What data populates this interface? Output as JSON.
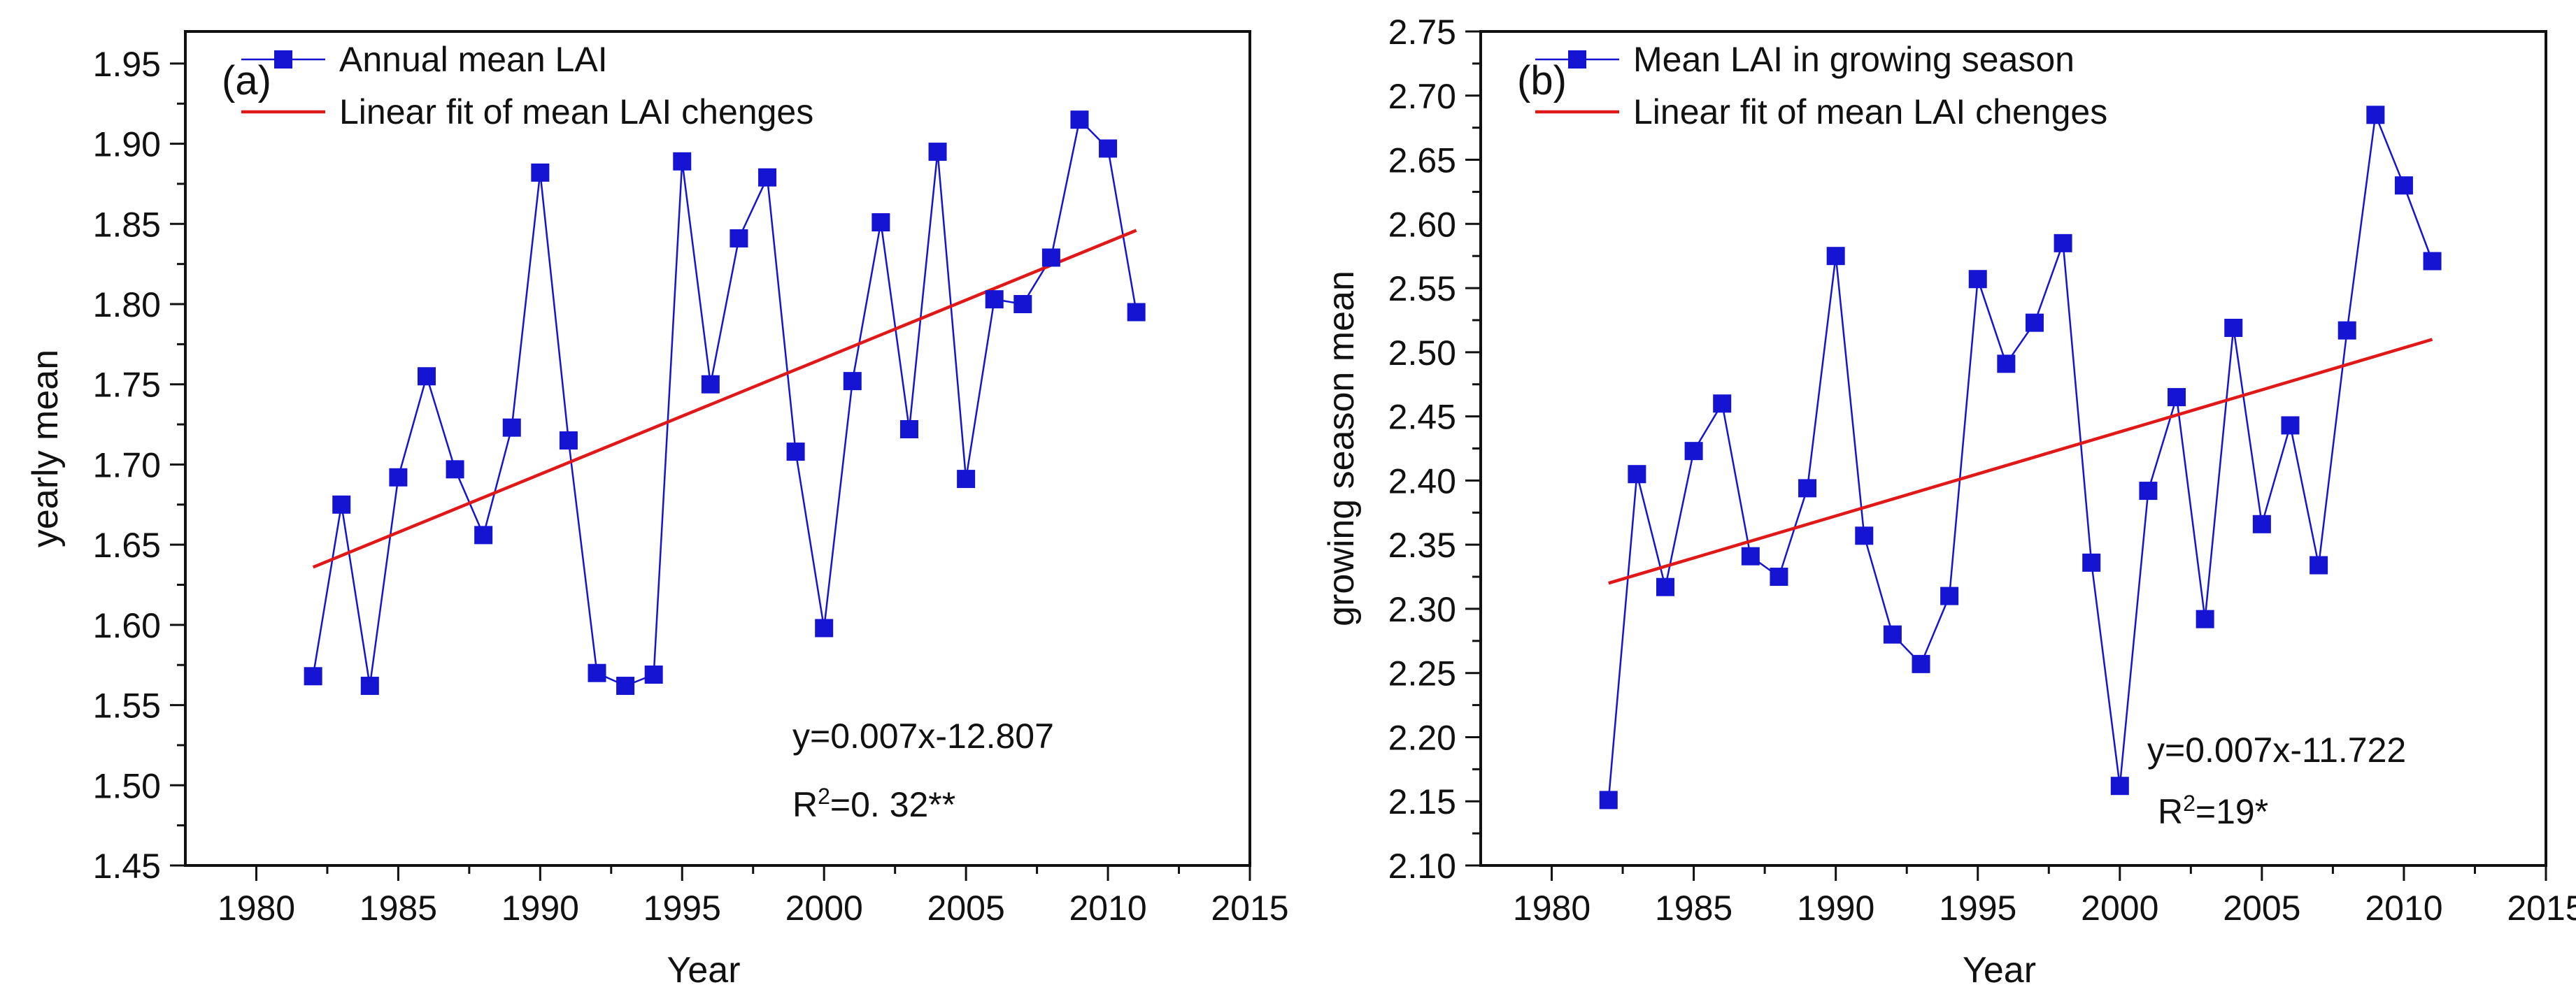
{
  "colors": {
    "series": "#1414d2",
    "fit": "#e01818",
    "axis": "#111111"
  },
  "chart_data": [
    {
      "type": "line",
      "panel_label": "(a)",
      "xlabel": "Year",
      "ylabel": "yearly mean",
      "xlim": [
        1977.5,
        2015
      ],
      "ylim": [
        1.45,
        1.97
      ],
      "xticks": [
        1980,
        1985,
        1990,
        1995,
        2000,
        2005,
        2010,
        2015
      ],
      "xtick_labels": [
        "1980",
        "1985",
        "1990",
        "1995",
        "2000",
        "2005",
        "2010",
        "2015"
      ],
      "yticks": [
        1.45,
        1.5,
        1.55,
        1.6,
        1.65,
        1.7,
        1.75,
        1.8,
        1.85,
        1.9,
        1.95
      ],
      "ytick_labels": [
        "1.45",
        "1.50",
        "1.55",
        "1.60",
        "1.65",
        "1.70",
        "1.75",
        "1.80",
        "1.85",
        "1.90",
        "1.95"
      ],
      "series": [
        {
          "name": "Annual mean LAI",
          "marker": "square",
          "x": [
            1982,
            1983,
            1984,
            1985,
            1986,
            1987,
            1988,
            1989,
            1990,
            1991,
            1992,
            1993,
            1994,
            1995,
            1996,
            1997,
            1998,
            1999,
            2000,
            2001,
            2002,
            2003,
            2004,
            2005,
            2006,
            2007,
            2008,
            2009,
            2010,
            2011
          ],
          "values": [
            1.568,
            1.675,
            1.562,
            1.692,
            1.755,
            1.697,
            1.656,
            1.723,
            1.882,
            1.715,
            1.57,
            1.562,
            1.569,
            1.889,
            1.75,
            1.841,
            1.879,
            1.708,
            1.598,
            1.752,
            1.851,
            1.722,
            1.895,
            1.691,
            1.803,
            1.8,
            1.829,
            1.915,
            1.897,
            1.795
          ]
        },
        {
          "name": "Linear fit of mean LAI chenges",
          "x": [
            1982,
            2011
          ],
          "values": [
            1.636,
            1.846
          ]
        }
      ],
      "annotations": {
        "equation": "y=0.007x-12.807",
        "r2_prefix": "R",
        "r2_sup": "2",
        "r2_value": "=0. 32**"
      }
    },
    {
      "type": "line",
      "panel_label": "(b)",
      "xlabel": "Year",
      "ylabel": "growing season mean",
      "xlim": [
        1977.5,
        2015
      ],
      "ylim": [
        2.1,
        2.75
      ],
      "xticks": [
        1980,
        1985,
        1990,
        1995,
        2000,
        2005,
        2010,
        2015
      ],
      "xtick_labels": [
        "1980",
        "1985",
        "1990",
        "1995",
        "2000",
        "2005",
        "2010",
        "2015"
      ],
      "yticks": [
        2.1,
        2.15,
        2.2,
        2.25,
        2.3,
        2.35,
        2.4,
        2.45,
        2.5,
        2.55,
        2.6,
        2.65,
        2.7,
        2.75
      ],
      "ytick_labels": [
        "2.10",
        "2.15",
        "2.20",
        "2.25",
        "2.30",
        "2.35",
        "2.40",
        "2.45",
        "2.50",
        "2.55",
        "2.60",
        "2.65",
        "2.70",
        "2.75"
      ],
      "series": [
        {
          "name": "Mean LAI in growing season",
          "marker": "square",
          "x": [
            1982,
            1983,
            1984,
            1985,
            1986,
            1987,
            1988,
            1989,
            1990,
            1991,
            1992,
            1993,
            1994,
            1995,
            1996,
            1997,
            1998,
            1999,
            2000,
            2001,
            2002,
            2003,
            2004,
            2005,
            2006,
            2007,
            2008,
            2009,
            2010,
            2011
          ],
          "values": [
            2.151,
            2.405,
            2.317,
            2.423,
            2.46,
            2.341,
            2.325,
            2.394,
            2.575,
            2.357,
            2.28,
            2.257,
            2.31,
            2.557,
            2.491,
            2.523,
            2.585,
            2.336,
            2.162,
            2.392,
            2.465,
            2.292,
            2.519,
            2.366,
            2.443,
            2.334,
            2.517,
            2.685,
            2.63,
            2.571
          ]
        },
        {
          "name": "Linear fit of mean LAI chenges",
          "x": [
            1982,
            2011
          ],
          "values": [
            2.32,
            2.51
          ]
        }
      ],
      "annotations": {
        "equation": "y=0.007x-11.722",
        "r2_prefix": "R",
        "r2_sup": "2",
        "r2_value": "=19*"
      }
    }
  ]
}
